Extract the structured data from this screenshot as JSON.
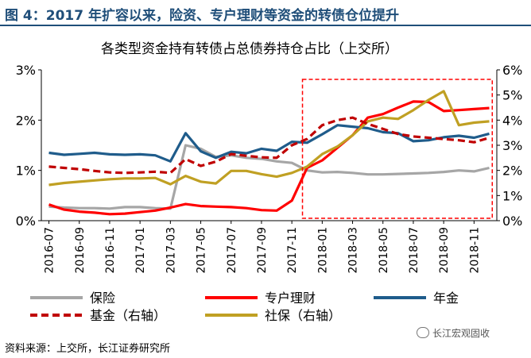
{
  "header": {
    "title": "图 4：2017 年扩容以来，险资、专户理财等资金的转债仓位提升"
  },
  "footer": {
    "source": "资料来源：上交所，长江证券研究所",
    "watermark": "长江宏观固收"
  },
  "chart_data": {
    "type": "line",
    "title": "各类型资金持有转债占总债券持仓占比（上交所）",
    "x": [
      "2016-07",
      "2016-08",
      "2016-09",
      "2016-10",
      "2016-11",
      "2016-12",
      "2017-01",
      "2017-02",
      "2017-03",
      "2017-04",
      "2017-05",
      "2017-06",
      "2017-07",
      "2017-08",
      "2017-09",
      "2017-10",
      "2017-11",
      "2017-12",
      "2018-01",
      "2018-02",
      "2018-03",
      "2018-04",
      "2018-05",
      "2018-06",
      "2018-07",
      "2018-08",
      "2018-09",
      "2018-10",
      "2018-11",
      "2018-12"
    ],
    "x_tick_labels": [
      "2016-07",
      "2016-09",
      "2016-11",
      "2017-01",
      "2017-03",
      "2017-05",
      "2017-07",
      "2017-09",
      "2017-11",
      "2018-01",
      "2018-03",
      "2018-05",
      "2018-07",
      "2018-09",
      "2018-11"
    ],
    "y_left": {
      "ylim": [
        0,
        3
      ],
      "ticks": [
        "0%",
        "1%",
        "2%",
        "3%"
      ]
    },
    "y_right": {
      "ylim": [
        0,
        6
      ],
      "ticks": [
        "0%",
        "1%",
        "2%",
        "3%",
        "4%",
        "5%",
        "6%"
      ]
    },
    "grid": false,
    "legend_position": "bottom",
    "series": [
      {
        "name": "保险",
        "axis": "left",
        "color": "#a6a6a6",
        "dash": "solid",
        "values": [
          0.28,
          0.26,
          0.25,
          0.25,
          0.24,
          0.27,
          0.27,
          0.25,
          0.24,
          1.5,
          1.43,
          1.27,
          1.3,
          1.25,
          1.23,
          1.18,
          1.15,
          1.0,
          0.96,
          0.97,
          0.95,
          0.92,
          0.92,
          0.93,
          0.94,
          0.95,
          0.97,
          1.0,
          0.98,
          1.05
        ]
      },
      {
        "name": "专户理财",
        "axis": "left",
        "color": "#ff0000",
        "dash": "solid",
        "values": [
          0.32,
          0.22,
          0.18,
          0.16,
          0.13,
          0.14,
          0.17,
          0.2,
          0.26,
          0.33,
          0.29,
          0.28,
          0.27,
          0.25,
          0.21,
          0.2,
          0.4,
          1.05,
          1.2,
          1.45,
          1.7,
          2.05,
          2.12,
          2.25,
          2.37,
          2.36,
          2.18,
          2.2,
          2.22,
          2.24
        ]
      },
      {
        "name": "年金",
        "axis": "left",
        "color": "#1f5c8b",
        "dash": "solid",
        "values": [
          1.35,
          1.31,
          1.33,
          1.35,
          1.32,
          1.31,
          1.32,
          1.3,
          1.18,
          1.74,
          1.38,
          1.25,
          1.37,
          1.34,
          1.43,
          1.39,
          1.57,
          1.55,
          1.72,
          1.9,
          1.87,
          1.84,
          1.76,
          1.74,
          1.58,
          1.6,
          1.66,
          1.69,
          1.65,
          1.73
        ]
      },
      {
        "name": "基金（右轴）",
        "axis": "right",
        "color": "#c00000",
        "dash": "dashed",
        "values": [
          2.15,
          2.1,
          2.05,
          1.98,
          1.92,
          1.9,
          1.92,
          1.95,
          1.9,
          2.45,
          2.18,
          2.35,
          2.65,
          2.58,
          2.52,
          2.5,
          3.0,
          3.25,
          3.8,
          4.0,
          4.1,
          3.85,
          3.65,
          3.45,
          3.35,
          3.3,
          3.25,
          3.2,
          3.12,
          3.3
        ]
      },
      {
        "name": "社保（右轴）",
        "axis": "right",
        "color": "#c0a023",
        "dash": "solid",
        "values": [
          1.42,
          1.5,
          1.55,
          1.6,
          1.65,
          1.68,
          1.68,
          1.7,
          1.45,
          1.78,
          1.55,
          1.48,
          1.98,
          1.98,
          1.85,
          1.75,
          1.9,
          2.15,
          2.65,
          2.95,
          3.4,
          3.95,
          4.1,
          4.05,
          4.4,
          4.8,
          5.15,
          3.8,
          3.9,
          3.95
        ]
      }
    ],
    "annotation": {
      "type": "highlight-box",
      "x_range": [
        "2017-12",
        "2018-12"
      ],
      "style": "red dashed"
    }
  }
}
